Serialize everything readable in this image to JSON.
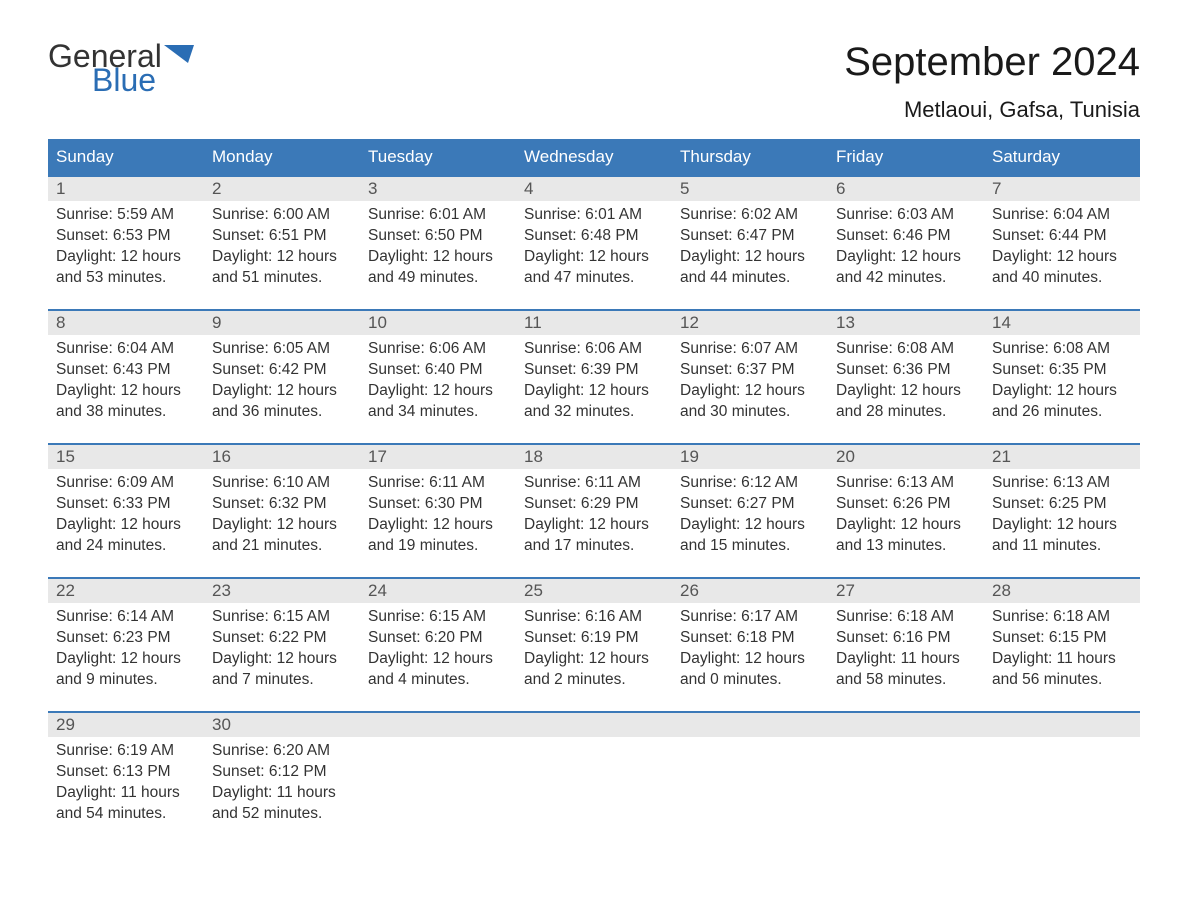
{
  "logo": {
    "text_general": "General",
    "text_blue": "Blue",
    "flag_color": "#2a6db4"
  },
  "header": {
    "month_title": "September 2024",
    "location": "Metlaoui, Gafsa, Tunisia"
  },
  "colors": {
    "header_bg": "#3b79b8",
    "header_text": "#ffffff",
    "daynum_bg": "#e8e8e8",
    "daynum_text": "#555555",
    "body_text": "#333333",
    "week_divider": "#3b79b8",
    "page_bg": "#ffffff",
    "logo_blue": "#2a6db4"
  },
  "typography": {
    "month_title_fontsize": 40,
    "location_fontsize": 22,
    "dayheader_fontsize": 17,
    "daynum_fontsize": 17,
    "body_fontsize": 15.5,
    "font_family": "Arial"
  },
  "layout": {
    "columns": 7,
    "rows": 5
  },
  "day_names": [
    "Sunday",
    "Monday",
    "Tuesday",
    "Wednesday",
    "Thursday",
    "Friday",
    "Saturday"
  ],
  "weeks": [
    [
      {
        "num": "1",
        "sunrise": "Sunrise: 5:59 AM",
        "sunset": "Sunset: 6:53 PM",
        "daylight1": "Daylight: 12 hours",
        "daylight2": "and 53 minutes."
      },
      {
        "num": "2",
        "sunrise": "Sunrise: 6:00 AM",
        "sunset": "Sunset: 6:51 PM",
        "daylight1": "Daylight: 12 hours",
        "daylight2": "and 51 minutes."
      },
      {
        "num": "3",
        "sunrise": "Sunrise: 6:01 AM",
        "sunset": "Sunset: 6:50 PM",
        "daylight1": "Daylight: 12 hours",
        "daylight2": "and 49 minutes."
      },
      {
        "num": "4",
        "sunrise": "Sunrise: 6:01 AM",
        "sunset": "Sunset: 6:48 PM",
        "daylight1": "Daylight: 12 hours",
        "daylight2": "and 47 minutes."
      },
      {
        "num": "5",
        "sunrise": "Sunrise: 6:02 AM",
        "sunset": "Sunset: 6:47 PM",
        "daylight1": "Daylight: 12 hours",
        "daylight2": "and 44 minutes."
      },
      {
        "num": "6",
        "sunrise": "Sunrise: 6:03 AM",
        "sunset": "Sunset: 6:46 PM",
        "daylight1": "Daylight: 12 hours",
        "daylight2": "and 42 minutes."
      },
      {
        "num": "7",
        "sunrise": "Sunrise: 6:04 AM",
        "sunset": "Sunset: 6:44 PM",
        "daylight1": "Daylight: 12 hours",
        "daylight2": "and 40 minutes."
      }
    ],
    [
      {
        "num": "8",
        "sunrise": "Sunrise: 6:04 AM",
        "sunset": "Sunset: 6:43 PM",
        "daylight1": "Daylight: 12 hours",
        "daylight2": "and 38 minutes."
      },
      {
        "num": "9",
        "sunrise": "Sunrise: 6:05 AM",
        "sunset": "Sunset: 6:42 PM",
        "daylight1": "Daylight: 12 hours",
        "daylight2": "and 36 minutes."
      },
      {
        "num": "10",
        "sunrise": "Sunrise: 6:06 AM",
        "sunset": "Sunset: 6:40 PM",
        "daylight1": "Daylight: 12 hours",
        "daylight2": "and 34 minutes."
      },
      {
        "num": "11",
        "sunrise": "Sunrise: 6:06 AM",
        "sunset": "Sunset: 6:39 PM",
        "daylight1": "Daylight: 12 hours",
        "daylight2": "and 32 minutes."
      },
      {
        "num": "12",
        "sunrise": "Sunrise: 6:07 AM",
        "sunset": "Sunset: 6:37 PM",
        "daylight1": "Daylight: 12 hours",
        "daylight2": "and 30 minutes."
      },
      {
        "num": "13",
        "sunrise": "Sunrise: 6:08 AM",
        "sunset": "Sunset: 6:36 PM",
        "daylight1": "Daylight: 12 hours",
        "daylight2": "and 28 minutes."
      },
      {
        "num": "14",
        "sunrise": "Sunrise: 6:08 AM",
        "sunset": "Sunset: 6:35 PM",
        "daylight1": "Daylight: 12 hours",
        "daylight2": "and 26 minutes."
      }
    ],
    [
      {
        "num": "15",
        "sunrise": "Sunrise: 6:09 AM",
        "sunset": "Sunset: 6:33 PM",
        "daylight1": "Daylight: 12 hours",
        "daylight2": "and 24 minutes."
      },
      {
        "num": "16",
        "sunrise": "Sunrise: 6:10 AM",
        "sunset": "Sunset: 6:32 PM",
        "daylight1": "Daylight: 12 hours",
        "daylight2": "and 21 minutes."
      },
      {
        "num": "17",
        "sunrise": "Sunrise: 6:11 AM",
        "sunset": "Sunset: 6:30 PM",
        "daylight1": "Daylight: 12 hours",
        "daylight2": "and 19 minutes."
      },
      {
        "num": "18",
        "sunrise": "Sunrise: 6:11 AM",
        "sunset": "Sunset: 6:29 PM",
        "daylight1": "Daylight: 12 hours",
        "daylight2": "and 17 minutes."
      },
      {
        "num": "19",
        "sunrise": "Sunrise: 6:12 AM",
        "sunset": "Sunset: 6:27 PM",
        "daylight1": "Daylight: 12 hours",
        "daylight2": "and 15 minutes."
      },
      {
        "num": "20",
        "sunrise": "Sunrise: 6:13 AM",
        "sunset": "Sunset: 6:26 PM",
        "daylight1": "Daylight: 12 hours",
        "daylight2": "and 13 minutes."
      },
      {
        "num": "21",
        "sunrise": "Sunrise: 6:13 AM",
        "sunset": "Sunset: 6:25 PM",
        "daylight1": "Daylight: 12 hours",
        "daylight2": "and 11 minutes."
      }
    ],
    [
      {
        "num": "22",
        "sunrise": "Sunrise: 6:14 AM",
        "sunset": "Sunset: 6:23 PM",
        "daylight1": "Daylight: 12 hours",
        "daylight2": "and 9 minutes."
      },
      {
        "num": "23",
        "sunrise": "Sunrise: 6:15 AM",
        "sunset": "Sunset: 6:22 PM",
        "daylight1": "Daylight: 12 hours",
        "daylight2": "and 7 minutes."
      },
      {
        "num": "24",
        "sunrise": "Sunrise: 6:15 AM",
        "sunset": "Sunset: 6:20 PM",
        "daylight1": "Daylight: 12 hours",
        "daylight2": "and 4 minutes."
      },
      {
        "num": "25",
        "sunrise": "Sunrise: 6:16 AM",
        "sunset": "Sunset: 6:19 PM",
        "daylight1": "Daylight: 12 hours",
        "daylight2": "and 2 minutes."
      },
      {
        "num": "26",
        "sunrise": "Sunrise: 6:17 AM",
        "sunset": "Sunset: 6:18 PM",
        "daylight1": "Daylight: 12 hours",
        "daylight2": "and 0 minutes."
      },
      {
        "num": "27",
        "sunrise": "Sunrise: 6:18 AM",
        "sunset": "Sunset: 6:16 PM",
        "daylight1": "Daylight: 11 hours",
        "daylight2": "and 58 minutes."
      },
      {
        "num": "28",
        "sunrise": "Sunrise: 6:18 AM",
        "sunset": "Sunset: 6:15 PM",
        "daylight1": "Daylight: 11 hours",
        "daylight2": "and 56 minutes."
      }
    ],
    [
      {
        "num": "29",
        "sunrise": "Sunrise: 6:19 AM",
        "sunset": "Sunset: 6:13 PM",
        "daylight1": "Daylight: 11 hours",
        "daylight2": "and 54 minutes."
      },
      {
        "num": "30",
        "sunrise": "Sunrise: 6:20 AM",
        "sunset": "Sunset: 6:12 PM",
        "daylight1": "Daylight: 11 hours",
        "daylight2": "and 52 minutes."
      },
      {
        "empty": true
      },
      {
        "empty": true
      },
      {
        "empty": true
      },
      {
        "empty": true
      },
      {
        "empty": true
      }
    ]
  ]
}
